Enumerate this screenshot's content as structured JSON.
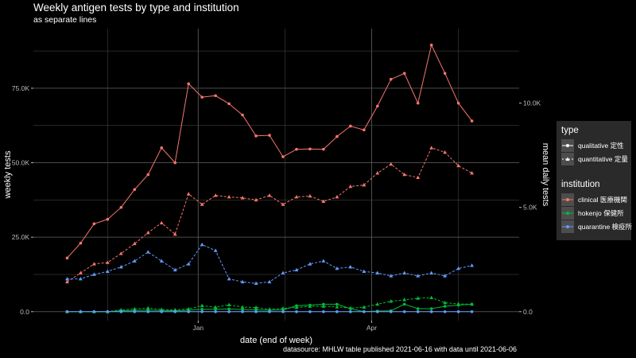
{
  "title": "Weekly antigen tests by type and institution",
  "subtitle": "as separate lines",
  "caption": "datasource: MHLW table published 2021-06-16 with data until 2021-06-06",
  "colors": {
    "background": "#000000",
    "grid": "#4d4d4d",
    "clinical": "#f8766d",
    "hokenjo": "#00ba38",
    "quarantine": "#619cff"
  },
  "legend": {
    "type_title": "type",
    "type_items": [
      {
        "label": "qualitative 定性",
        "linestyle": "solid",
        "marker": "circle"
      },
      {
        "label": "quantitative 定量",
        "linestyle": "dashed",
        "marker": "triangle"
      }
    ],
    "institution_title": "institution",
    "institution_items": [
      {
        "label": "clinical 医療機関",
        "color": "#f8766d"
      },
      {
        "label": "hokenjo 保健所",
        "color": "#00ba38"
      },
      {
        "label": "quarantine 検疫所",
        "color": "#619cff"
      }
    ]
  },
  "chart_data": {
    "type": "line",
    "xlabel": "date (end of week)",
    "ylabel": "weekly tests",
    "y2label": "mean daily tests",
    "ylim": [
      -3000,
      95000
    ],
    "y2_scale": "secondary axis = weekly tests / 7",
    "x_ticks": [
      "Jan",
      "Apr"
    ],
    "y_ticks": [
      "0.0",
      "25.0K",
      "50.0K",
      "75.0K"
    ],
    "y2_ticks": [
      "0.0",
      "5.0K",
      "10.0K"
    ],
    "grid": true,
    "legend_position": "right",
    "x_dates": [
      "2020-10-18",
      "2020-10-25",
      "2020-11-01",
      "2020-11-08",
      "2020-11-15",
      "2020-11-22",
      "2020-11-29",
      "2020-12-06",
      "2020-12-13",
      "2020-12-20",
      "2020-12-27",
      "2021-01-03",
      "2021-01-10",
      "2021-01-17",
      "2021-01-24",
      "2021-01-31",
      "2021-02-07",
      "2021-02-14",
      "2021-02-21",
      "2021-02-28",
      "2021-03-07",
      "2021-03-14",
      "2021-03-21",
      "2021-03-28",
      "2021-04-04",
      "2021-04-11",
      "2021-04-18",
      "2021-04-25",
      "2021-05-02",
      "2021-05-09",
      "2021-05-16",
      "2021-05-23",
      "2021-05-30",
      "2021-06-06"
    ],
    "series": [
      {
        "name": "clinical 医療機関",
        "type": "qualitative 定性",
        "institution": "clinical",
        "values": [
          18000,
          23000,
          29500,
          31000,
          35000,
          41000,
          46000,
          55000,
          50000,
          76500,
          72000,
          72500,
          69800,
          66000,
          59000,
          59200,
          52000,
          54500,
          54600,
          54500,
          58800,
          62300,
          61000,
          69000,
          78000,
          80000,
          70000,
          89500,
          80000,
          70000,
          64000
        ]
      },
      {
        "name": "clinical 医療機関",
        "type": "quantitative 定量",
        "institution": "clinical",
        "values": [
          10000,
          13000,
          16000,
          16500,
          19500,
          22800,
          26500,
          29800,
          26000,
          39500,
          36000,
          39000,
          38500,
          38200,
          37500,
          39000,
          36000,
          38500,
          38800,
          37000,
          38500,
          42000,
          42500,
          46500,
          49500,
          46000,
          45000,
          55000,
          53500,
          49000,
          46500
        ]
      },
      {
        "name": "hokenjo 保健所",
        "type": "qualitative 定性",
        "institution": "hokenjo",
        "values": [
          0,
          0,
          0,
          0,
          300,
          400,
          500,
          400,
          300,
          500,
          800,
          800,
          900,
          700,
          600,
          500,
          600,
          2000,
          2200,
          2500,
          2500,
          1000,
          0,
          200,
          300,
          2500,
          1000,
          1000,
          1800,
          2200,
          2500
        ]
      },
      {
        "name": "hokenjo 保健所",
        "type": "quantitative 定量",
        "institution": "hokenjo",
        "values": [
          0,
          0,
          0,
          0,
          600,
          900,
          1200,
          700,
          600,
          900,
          2000,
          1500,
          2300,
          1500,
          1400,
          800,
          1100,
          1400,
          1800,
          1800,
          1600,
          1200,
          1500,
          2500,
          3500,
          4000,
          4500,
          4700,
          3000,
          2600,
          2500
        ]
      },
      {
        "name": "quarantine 検疫所",
        "type": "qualitative 定性",
        "institution": "quarantine",
        "values": [
          0,
          0,
          0,
          0,
          0,
          0,
          0,
          0,
          0,
          0,
          0,
          0,
          0,
          0,
          0,
          0,
          0,
          0,
          0,
          0,
          0,
          0,
          0,
          0,
          0,
          0,
          0,
          0,
          0,
          0,
          0
        ]
      },
      {
        "name": "quarantine 検疫所",
        "type": "quantitative 定量",
        "institution": "quarantine",
        "values": [
          11000,
          11000,
          12500,
          13500,
          15000,
          17000,
          20000,
          17000,
          14000,
          16000,
          22500,
          20500,
          11000,
          10000,
          9500,
          10000,
          13000,
          14000,
          16000,
          17000,
          14500,
          15000,
          13500,
          13000,
          12000,
          13000,
          12000,
          13000,
          12000,
          14500,
          15500
        ]
      }
    ],
    "x_index_of_value": [
      1,
      2,
      3,
      4,
      5,
      6,
      7,
      8,
      9,
      10,
      11,
      12,
      13,
      14,
      15,
      16,
      17,
      18,
      19,
      20,
      21,
      22,
      23,
      24,
      25,
      26,
      27,
      28,
      29,
      30,
      31
    ]
  }
}
